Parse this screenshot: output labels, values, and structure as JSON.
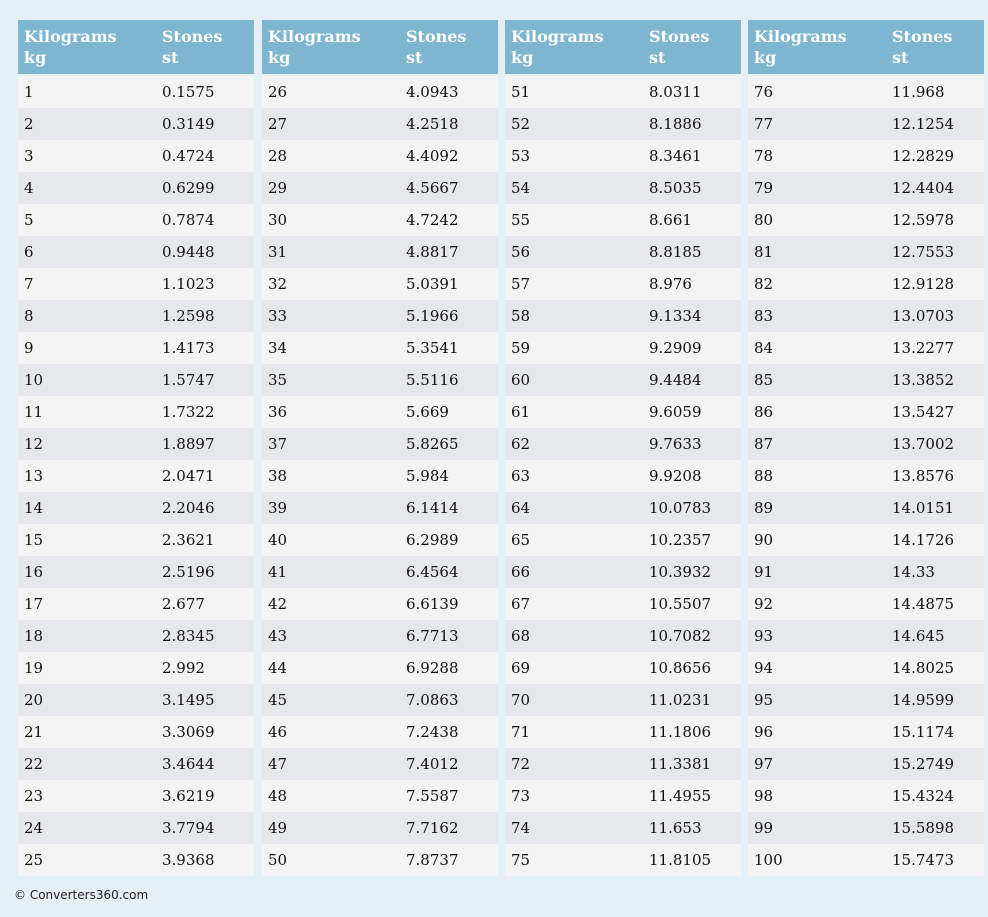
{
  "tables": [
    {
      "columns": [
        {
          "title": "Kilograms",
          "unit": "kg"
        },
        {
          "title": "Stones",
          "unit": "st"
        }
      ],
      "rows": [
        [
          "1",
          "0.1575"
        ],
        [
          "2",
          "0.3149"
        ],
        [
          "3",
          "0.4724"
        ],
        [
          "4",
          "0.6299"
        ],
        [
          "5",
          "0.7874"
        ],
        [
          "6",
          "0.9448"
        ],
        [
          "7",
          "1.1023"
        ],
        [
          "8",
          "1.2598"
        ],
        [
          "9",
          "1.4173"
        ],
        [
          "10",
          "1.5747"
        ],
        [
          "11",
          "1.7322"
        ],
        [
          "12",
          "1.8897"
        ],
        [
          "13",
          "2.0471"
        ],
        [
          "14",
          "2.2046"
        ],
        [
          "15",
          "2.3621"
        ],
        [
          "16",
          "2.5196"
        ],
        [
          "17",
          "2.677"
        ],
        [
          "18",
          "2.8345"
        ],
        [
          "19",
          "2.992"
        ],
        [
          "20",
          "3.1495"
        ],
        [
          "21",
          "3.3069"
        ],
        [
          "22",
          "3.4644"
        ],
        [
          "23",
          "3.6219"
        ],
        [
          "24",
          "3.7794"
        ],
        [
          "25",
          "3.9368"
        ]
      ]
    },
    {
      "columns": [
        {
          "title": "Kilograms",
          "unit": "kg"
        },
        {
          "title": "Stones",
          "unit": "st"
        }
      ],
      "rows": [
        [
          "26",
          "4.0943"
        ],
        [
          "27",
          "4.2518"
        ],
        [
          "28",
          "4.4092"
        ],
        [
          "29",
          "4.5667"
        ],
        [
          "30",
          "4.7242"
        ],
        [
          "31",
          "4.8817"
        ],
        [
          "32",
          "5.0391"
        ],
        [
          "33",
          "5.1966"
        ],
        [
          "34",
          "5.3541"
        ],
        [
          "35",
          "5.5116"
        ],
        [
          "36",
          "5.669"
        ],
        [
          "37",
          "5.8265"
        ],
        [
          "38",
          "5.984"
        ],
        [
          "39",
          "6.1414"
        ],
        [
          "40",
          "6.2989"
        ],
        [
          "41",
          "6.4564"
        ],
        [
          "42",
          "6.6139"
        ],
        [
          "43",
          "6.7713"
        ],
        [
          "44",
          "6.9288"
        ],
        [
          "45",
          "7.0863"
        ],
        [
          "46",
          "7.2438"
        ],
        [
          "47",
          "7.4012"
        ],
        [
          "48",
          "7.5587"
        ],
        [
          "49",
          "7.7162"
        ],
        [
          "50",
          "7.8737"
        ]
      ]
    },
    {
      "columns": [
        {
          "title": "Kilograms",
          "unit": "kg"
        },
        {
          "title": "Stones",
          "unit": "st"
        }
      ],
      "rows": [
        [
          "51",
          "8.0311"
        ],
        [
          "52",
          "8.1886"
        ],
        [
          "53",
          "8.3461"
        ],
        [
          "54",
          "8.5035"
        ],
        [
          "55",
          "8.661"
        ],
        [
          "56",
          "8.8185"
        ],
        [
          "57",
          "8.976"
        ],
        [
          "58",
          "9.1334"
        ],
        [
          "59",
          "9.2909"
        ],
        [
          "60",
          "9.4484"
        ],
        [
          "61",
          "9.6059"
        ],
        [
          "62",
          "9.7633"
        ],
        [
          "63",
          "9.9208"
        ],
        [
          "64",
          "10.0783"
        ],
        [
          "65",
          "10.2357"
        ],
        [
          "66",
          "10.3932"
        ],
        [
          "67",
          "10.5507"
        ],
        [
          "68",
          "10.7082"
        ],
        [
          "69",
          "10.8656"
        ],
        [
          "70",
          "11.0231"
        ],
        [
          "71",
          "11.1806"
        ],
        [
          "72",
          "11.3381"
        ],
        [
          "73",
          "11.4955"
        ],
        [
          "74",
          "11.653"
        ],
        [
          "75",
          "11.8105"
        ]
      ]
    },
    {
      "columns": [
        {
          "title": "Kilograms",
          "unit": "kg"
        },
        {
          "title": "Stones",
          "unit": "st"
        }
      ],
      "rows": [
        [
          "76",
          "11.968"
        ],
        [
          "77",
          "12.1254"
        ],
        [
          "78",
          "12.2829"
        ],
        [
          "79",
          "12.4404"
        ],
        [
          "80",
          "12.5978"
        ],
        [
          "81",
          "12.7553"
        ],
        [
          "82",
          "12.9128"
        ],
        [
          "83",
          "13.0703"
        ],
        [
          "84",
          "13.2277"
        ],
        [
          "85",
          "13.3852"
        ],
        [
          "86",
          "13.5427"
        ],
        [
          "87",
          "13.7002"
        ],
        [
          "88",
          "13.8576"
        ],
        [
          "89",
          "14.0151"
        ],
        [
          "90",
          "14.1726"
        ],
        [
          "91",
          "14.33"
        ],
        [
          "92",
          "14.4875"
        ],
        [
          "93",
          "14.645"
        ],
        [
          "94",
          "14.8025"
        ],
        [
          "95",
          "14.9599"
        ],
        [
          "96",
          "15.1174"
        ],
        [
          "97",
          "15.2749"
        ],
        [
          "98",
          "15.4324"
        ],
        [
          "99",
          "15.5898"
        ],
        [
          "100",
          "15.7473"
        ]
      ]
    }
  ],
  "footer": "© Converters360.com"
}
